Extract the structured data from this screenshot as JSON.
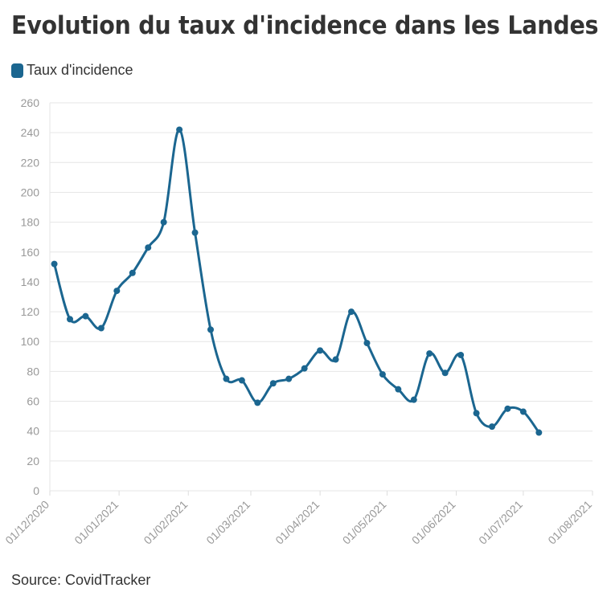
{
  "chart_data": {
    "type": "line",
    "title": "Evolution du taux d'incidence dans les Landes",
    "legend": [
      {
        "name": "Taux d'incidence",
        "color": "#1b6690"
      }
    ],
    "source": "Source: CovidTracker",
    "xlabel": "",
    "ylabel": "",
    "ylim": [
      0,
      260
    ],
    "yticks": [
      0,
      20,
      40,
      60,
      80,
      100,
      120,
      140,
      160,
      180,
      200,
      220,
      240,
      260
    ],
    "xlim": [
      "2020-12-01",
      "2021-08-01"
    ],
    "xticks": [
      {
        "date": "2020-12-01",
        "label": "01/12/2020"
      },
      {
        "date": "2021-01-01",
        "label": "01/01/2021"
      },
      {
        "date": "2021-02-01",
        "label": "01/02/2021"
      },
      {
        "date": "2021-03-01",
        "label": "01/03/2021"
      },
      {
        "date": "2021-04-01",
        "label": "01/04/2021"
      },
      {
        "date": "2021-05-01",
        "label": "01/05/2021"
      },
      {
        "date": "2021-06-01",
        "label": "01/06/2021"
      },
      {
        "date": "2021-07-01",
        "label": "01/07/2021"
      },
      {
        "date": "2021-08-01",
        "label": "01/08/2021"
      }
    ],
    "grid": true,
    "series": [
      {
        "name": "Taux d'incidence",
        "start": "2020-12-03",
        "interval_days": 7,
        "values": [
          152,
          115,
          117,
          109,
          134,
          146,
          163,
          180,
          242,
          173,
          108,
          75,
          74,
          59,
          72,
          75,
          82,
          94,
          88,
          120,
          99,
          78,
          68,
          61,
          92,
          79,
          91,
          52,
          43,
          55,
          53,
          39
        ]
      }
    ]
  }
}
